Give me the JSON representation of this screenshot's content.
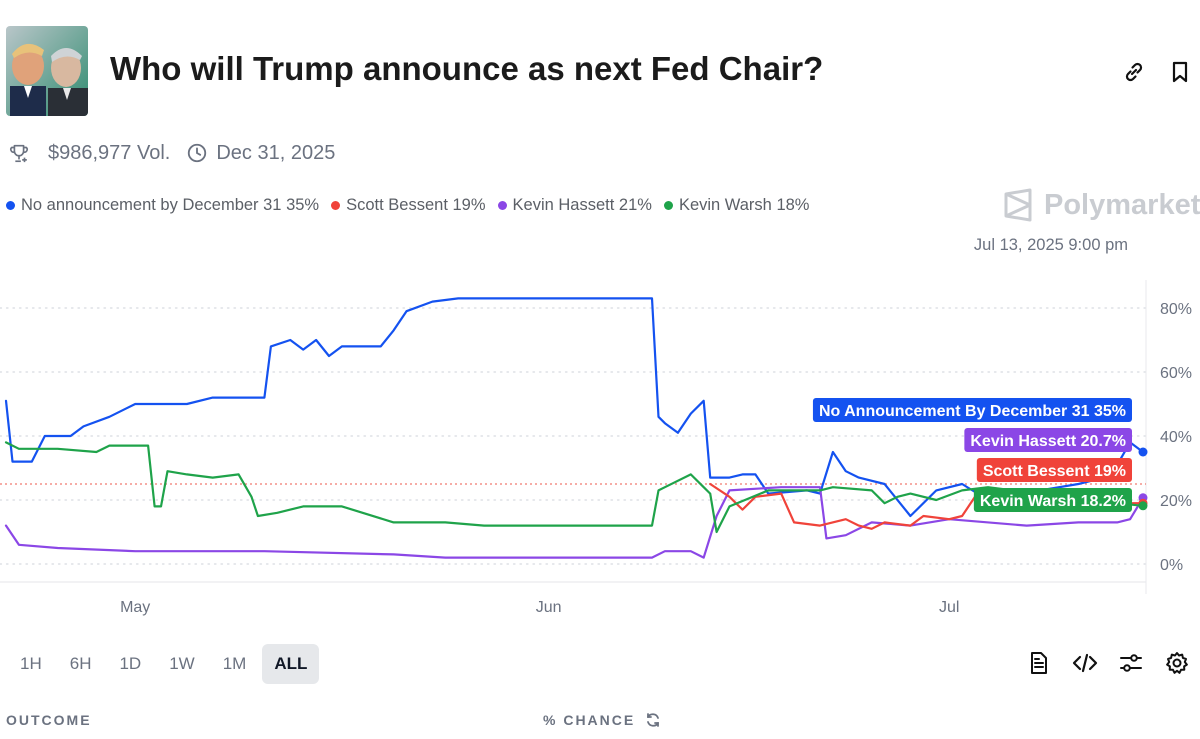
{
  "header": {
    "title": "Who will Trump announce as next Fed Chair?",
    "volume": "$986,977 Vol.",
    "end_date": "Dec 31, 2025"
  },
  "brand": {
    "name": "Polymarket"
  },
  "hover_time": "Jul 13, 2025 9:00 pm",
  "legend": [
    {
      "label": "No announcement by December 31 35%",
      "color": "#1452f0"
    },
    {
      "label": "Scott Bessent 19%",
      "color": "#f0433a"
    },
    {
      "label": "Kevin Hassett 21%",
      "color": "#8b47e6"
    },
    {
      "label": "Kevin Warsh 18%",
      "color": "#1fa34a"
    }
  ],
  "ranges": [
    "1H",
    "6H",
    "1D",
    "1W",
    "1M",
    "ALL"
  ],
  "active_range": "ALL",
  "footer": {
    "outcome": "OUTCOME",
    "chance": "% CHANCE"
  },
  "icons": [
    "link-icon",
    "bookmark-icon",
    "trophy-icon",
    "clock-icon",
    "document-icon",
    "code-icon",
    "sliders-icon",
    "gear-icon",
    "refresh-icon"
  ],
  "chart_data": {
    "type": "line",
    "x_labels": [
      "May",
      "Jun",
      "Jul"
    ],
    "x_label_day": [
      10,
      42,
      73
    ],
    "x_range": [
      0,
      88
    ],
    "y_ticks": [
      "0%",
      "20%",
      "40%",
      "60%",
      "80%"
    ],
    "y_tick_values": [
      0,
      20,
      40,
      60,
      80
    ],
    "ylim": [
      0,
      80
    ],
    "reference_line": 25,
    "series": [
      {
        "name": "No Announcement By December 31 35%",
        "color": "#1452f0",
        "points": [
          [
            0,
            51
          ],
          [
            0.5,
            32
          ],
          [
            2,
            32
          ],
          [
            3,
            40
          ],
          [
            5,
            40
          ],
          [
            6,
            43
          ],
          [
            8,
            46
          ],
          [
            10,
            50
          ],
          [
            14,
            50
          ],
          [
            16,
            52
          ],
          [
            20,
            52
          ],
          [
            20.5,
            68
          ],
          [
            22,
            70
          ],
          [
            23,
            67
          ],
          [
            24,
            70
          ],
          [
            25,
            65
          ],
          [
            26,
            68
          ],
          [
            29,
            68
          ],
          [
            30,
            73
          ],
          [
            31,
            79
          ],
          [
            33,
            82
          ],
          [
            35,
            83
          ],
          [
            50,
            83
          ],
          [
            50.5,
            46
          ],
          [
            51,
            44
          ],
          [
            52,
            41
          ],
          [
            53,
            47
          ],
          [
            54,
            51
          ],
          [
            54.5,
            27
          ],
          [
            56,
            27
          ],
          [
            57,
            28
          ],
          [
            58,
            28
          ],
          [
            59,
            22
          ],
          [
            62,
            23
          ],
          [
            63,
            22
          ],
          [
            64,
            35
          ],
          [
            65,
            29
          ],
          [
            66,
            27
          ],
          [
            68,
            25
          ],
          [
            70,
            15
          ],
          [
            72,
            23
          ],
          [
            74,
            25
          ],
          [
            76,
            20
          ],
          [
            80,
            23
          ],
          [
            83,
            25
          ],
          [
            84,
            26
          ],
          [
            86,
            31
          ],
          [
            87,
            38
          ],
          [
            88,
            35
          ]
        ]
      },
      {
        "name": "Kevin Hassett 20.7%",
        "color": "#8b47e6",
        "points": [
          [
            0,
            12
          ],
          [
            1,
            6
          ],
          [
            4,
            5
          ],
          [
            10,
            4
          ],
          [
            20,
            4
          ],
          [
            30,
            3
          ],
          [
            34,
            2
          ],
          [
            45,
            2
          ],
          [
            50,
            2
          ],
          [
            51,
            4
          ],
          [
            53,
            4
          ],
          [
            54,
            2
          ],
          [
            55,
            15
          ],
          [
            56,
            23
          ],
          [
            60,
            24
          ],
          [
            63,
            24
          ],
          [
            63.5,
            8
          ],
          [
            65,
            9
          ],
          [
            67,
            13
          ],
          [
            70,
            12
          ],
          [
            73,
            14
          ],
          [
            79,
            12
          ],
          [
            83,
            13
          ],
          [
            86,
            13
          ],
          [
            87,
            14
          ],
          [
            88,
            20.7
          ]
        ]
      },
      {
        "name": "Scott Bessent 19%",
        "color": "#f0433a",
        "points": [
          [
            54.5,
            25
          ],
          [
            56,
            21
          ],
          [
            57,
            17
          ],
          [
            58,
            21
          ],
          [
            60,
            22
          ],
          [
            61,
            13
          ],
          [
            63,
            12
          ],
          [
            65,
            14
          ],
          [
            66,
            12
          ],
          [
            67,
            11
          ],
          [
            68,
            13
          ],
          [
            70,
            12
          ],
          [
            71,
            15
          ],
          [
            73,
            14
          ],
          [
            74,
            15
          ],
          [
            75,
            21
          ],
          [
            77,
            23
          ],
          [
            80,
            22
          ],
          [
            83,
            20
          ],
          [
            86,
            19
          ],
          [
            88,
            19
          ]
        ]
      },
      {
        "name": "Kevin Warsh 18.2%",
        "color": "#1fa34a",
        "points": [
          [
            0,
            38
          ],
          [
            1,
            36
          ],
          [
            4,
            36
          ],
          [
            7,
            35
          ],
          [
            8,
            37
          ],
          [
            11,
            37
          ],
          [
            11.5,
            18
          ],
          [
            12,
            18
          ],
          [
            12.5,
            29
          ],
          [
            14,
            28
          ],
          [
            16,
            27
          ],
          [
            18,
            28
          ],
          [
            19,
            21
          ],
          [
            19.5,
            15
          ],
          [
            21,
            16
          ],
          [
            23,
            18
          ],
          [
            26,
            18
          ],
          [
            30,
            13
          ],
          [
            34,
            13
          ],
          [
            37,
            12
          ],
          [
            43,
            12
          ],
          [
            50,
            12
          ],
          [
            50.5,
            23
          ],
          [
            51,
            24
          ],
          [
            53,
            28
          ],
          [
            54,
            24
          ],
          [
            54.5,
            22
          ],
          [
            55,
            10
          ],
          [
            56,
            18
          ],
          [
            59,
            23
          ],
          [
            63,
            23
          ],
          [
            64,
            24
          ],
          [
            67,
            23
          ],
          [
            68,
            19
          ],
          [
            69,
            21
          ],
          [
            70,
            22
          ],
          [
            72,
            20
          ],
          [
            74,
            23
          ],
          [
            76,
            24
          ],
          [
            80,
            22
          ],
          [
            84,
            20
          ],
          [
            86,
            19
          ],
          [
            88,
            18.2
          ]
        ]
      }
    ],
    "end_labels": [
      {
        "text": "No Announcement By December 31 35%",
        "color": "#1452f0",
        "row": 0
      },
      {
        "text": "Kevin Hassett 20.7%",
        "color": "#8b47e6",
        "row": 1
      },
      {
        "text": "Scott Bessent 19%",
        "color": "#f0433a",
        "row": 2
      },
      {
        "text": "Kevin Warsh 18.2%",
        "color": "#1fa34a",
        "row": 3
      }
    ]
  }
}
